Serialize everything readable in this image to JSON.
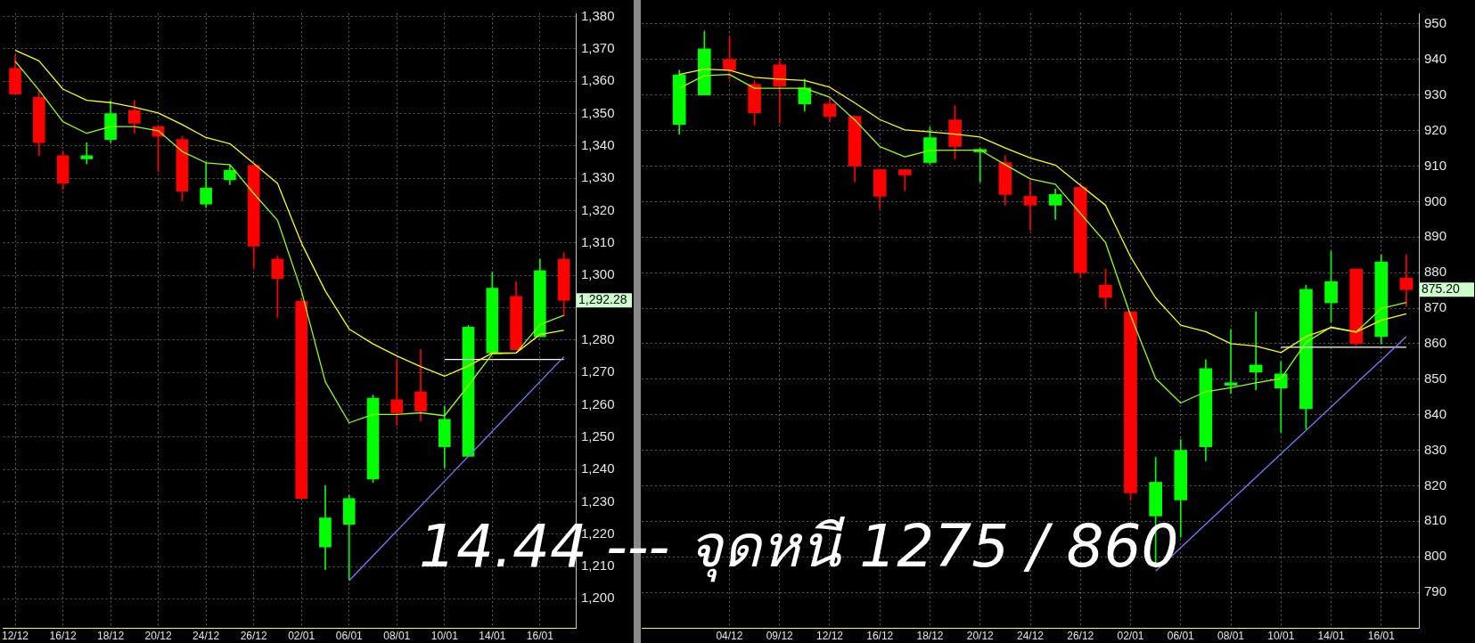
{
  "chart_data": [
    {
      "type": "candlestick",
      "categories": [
        "12/12",
        null,
        "16/12",
        null,
        "18/12",
        null,
        "20/12",
        null,
        "24/12",
        null,
        "26/12",
        null,
        "02/01",
        null,
        "06/01",
        null,
        "08/01",
        null,
        "10/01",
        null,
        "14/01",
        null,
        "16/01",
        null
      ],
      "ohlc": [
        [
          1364,
          1368,
          1356,
          1356
        ],
        [
          1355,
          1357,
          1337,
          1341
        ],
        [
          1337,
          1338.5,
          1326.5,
          1328.5
        ],
        [
          1336,
          1341,
          1334.5,
          1337
        ],
        [
          1342,
          1354,
          1341,
          1350
        ],
        [
          1351,
          1354,
          1344,
          1347
        ],
        [
          1346,
          1346,
          1332,
          1343
        ],
        [
          1342,
          1343,
          1323,
          1326
        ],
        [
          1322,
          1335,
          1321,
          1327
        ],
        [
          1329.5,
          1334,
          1328,
          1332.5
        ],
        [
          1334,
          1334,
          1302,
          1309
        ],
        [
          1305,
          1306,
          1287,
          1299
        ],
        [
          1292,
          1293,
          1231,
          1231
        ],
        [
          1216,
          1235,
          1209,
          1225
        ],
        [
          1223,
          1232,
          1206,
          1231
        ],
        [
          1237,
          1263,
          1236,
          1262
        ],
        [
          1261.5,
          1274,
          1253.5,
          1257.5
        ],
        [
          1264,
          1277,
          1255,
          1258
        ],
        [
          1247,
          1259.5,
          1240.5,
          1255.5
        ],
        [
          1244,
          1284.5,
          1244,
          1284
        ],
        [
          1276,
          1301,
          1276,
          1296
        ],
        [
          1293.5,
          1298,
          1277,
          1277
        ],
        [
          1281,
          1305,
          1281,
          1301.5
        ],
        [
          1305,
          1307,
          1287.5,
          1292.28
        ]
      ],
      "colors": [
        "#ff0000",
        "#ff0000",
        "#ff0000",
        "#00ff00",
        "#00ff00",
        "#ff0000",
        "#ff0000",
        "#ff0000",
        "#00ff00",
        "#00ff00",
        "#ff0000",
        "#ff0000",
        "#ff0000",
        "#00ff00",
        "#00ff00",
        "#00ff00",
        "#ff0000",
        "#ff0000",
        "#00ff00",
        "#00ff00",
        "#00ff00",
        "#ff0000",
        "#00ff00",
        "#ff0000"
      ],
      "series": [
        {
          "type": "line",
          "color": "#ffff00",
          "values": [
            1369.6,
            1366.3,
            1357.6,
            1354.1,
            1353.4,
            1352,
            1350.2,
            1346.6,
            1342.6,
            1340.7,
            1334.6,
            1328.4,
            1310,
            1295.2,
            1283.4,
            1278.8,
            1275.1,
            1271.8,
            1268.8,
            1272,
            1276,
            1276,
            1281.7,
            1283
          ]
        },
        {
          "type": "line",
          "color": "#99ff00",
          "values": [
            1366.2,
            1357.3,
            1347.5,
            1343.9,
            1346,
            1346,
            1344.7,
            1338.3,
            1334.8,
            1334.2,
            1325.3,
            1317,
            1295.2,
            1267.1,
            1254.4,
            1257,
            1257,
            1257.5,
            1256.6,
            1265.9,
            1275.7,
            1276,
            1284.8,
            1287.6
          ]
        },
        {
          "type": "line",
          "color": "#7b7bff",
          "values": [
            null,
            null,
            null,
            null,
            null,
            null,
            null,
            null,
            null,
            null,
            null,
            null,
            null,
            null,
            1205.6,
            null,
            null,
            null,
            null,
            null,
            null,
            null,
            null,
            1274.8
          ]
        },
        {
          "type": "line",
          "color": "#ffffff",
          "values": [
            null,
            null,
            null,
            null,
            null,
            null,
            null,
            null,
            null,
            null,
            null,
            null,
            null,
            null,
            null,
            null,
            null,
            null,
            1274,
            1274,
            1274,
            1274,
            1274,
            1274
          ]
        }
      ],
      "ylim": [
        1191,
        1381
      ],
      "yticks": [
        {
          "value": 1200,
          "label": "1,200"
        },
        {
          "value": 1210,
          "label": "1,210"
        },
        {
          "value": 1220,
          "label": "1,220"
        },
        {
          "value": 1230,
          "label": "1,230"
        },
        {
          "value": 1240,
          "label": "1,240"
        },
        {
          "value": 1250,
          "label": "1,250"
        },
        {
          "value": 1260,
          "label": "1,260"
        },
        {
          "value": 1270,
          "label": "1,270"
        },
        {
          "value": 1280,
          "label": "1,280"
        },
        {
          "value": 1290,
          "label": null
        },
        {
          "value": 1300,
          "label": "1,300"
        },
        {
          "value": 1310,
          "label": "1,310"
        },
        {
          "value": 1320,
          "label": "1,320"
        },
        {
          "value": 1330,
          "label": "1,330"
        },
        {
          "value": 1340,
          "label": "1,340"
        },
        {
          "value": 1350,
          "label": "1,350"
        },
        {
          "value": 1360,
          "label": "1,360"
        },
        {
          "value": 1370,
          "label": "1,370"
        },
        {
          "value": 1380,
          "label": "1,380"
        }
      ],
      "grid": true,
      "marker": "none",
      "annotations": [
        "1,292.28",
        "14.44 --- จุดหนี 1275 / 860"
      ]
    },
    {
      "type": "candlestick",
      "categories": [
        null,
        null,
        null,
        "04/12",
        null,
        "09/12",
        null,
        "12/12",
        null,
        "16/12",
        null,
        "18/12",
        null,
        "20/12",
        null,
        "24/12",
        null,
        "26/12",
        null,
        "02/01",
        null,
        "06/01",
        null,
        "08/01",
        null,
        "10/01",
        null,
        "14/01",
        null,
        "16/01",
        null
      ],
      "ohlc": [
        null,
        [
          921.7,
          937,
          919,
          935.7
        ],
        [
          930,
          948,
          930,
          943
        ],
        [
          940,
          946.5,
          934.5,
          937
        ],
        [
          933,
          934,
          921.5,
          925
        ],
        [
          938.5,
          940,
          922,
          932.5
        ],
        [
          927.5,
          934.5,
          925.5,
          932
        ],
        [
          927.5,
          929,
          922.5,
          924
        ],
        [
          924,
          924,
          905.5,
          910
        ],
        [
          909,
          909,
          898,
          901.5
        ],
        [
          909,
          909,
          903,
          907.5
        ],
        [
          911,
          921,
          910.5,
          918
        ],
        [
          923,
          927,
          912,
          915.5
        ],
        [
          914,
          915,
          905.5,
          914.7
        ],
        [
          911,
          913,
          899,
          902
        ],
        [
          901.5,
          906,
          892,
          899
        ],
        [
          899,
          903.5,
          895,
          902
        ],
        [
          904,
          905,
          878.5,
          880
        ],
        [
          876.5,
          881,
          870,
          873
        ],
        [
          869,
          869,
          816,
          818
        ],
        [
          811.5,
          828,
          797,
          821
        ],
        [
          816,
          833,
          805.5,
          830
        ],
        [
          831,
          855.5,
          827,
          853
        ],
        [
          848.3,
          864,
          846,
          849
        ],
        [
          852,
          869,
          847,
          854
        ],
        [
          847.5,
          855,
          835,
          851.5
        ],
        [
          841.7,
          876.5,
          836,
          875.3
        ],
        [
          871.5,
          886,
          866,
          877.5
        ],
        [
          881,
          881,
          859.5,
          860
        ],
        [
          862,
          885,
          860,
          883
        ],
        [
          878.5,
          885,
          870.5,
          875.2
        ]
      ],
      "colors": [
        null,
        "#00ff00",
        "#00ff00",
        "#ff0000",
        "#ff0000",
        "#ff0000",
        "#00ff00",
        "#ff0000",
        "#ff0000",
        "#ff0000",
        "#ff0000",
        "#00ff00",
        "#ff0000",
        "#00ff00",
        "#ff0000",
        "#ff0000",
        "#00ff00",
        "#ff0000",
        "#ff0000",
        "#ff0000",
        "#00ff00",
        "#00ff00",
        "#00ff00",
        "#00ff00",
        "#00ff00",
        "#00ff00",
        "#00ff00",
        "#00ff00",
        "#ff0000",
        "#00ff00",
        "#ff0000"
      ],
      "series": [
        {
          "type": "line",
          "color": "#ffff00",
          "values": [
            null,
            935.8,
            937.3,
            937,
            935,
            934.5,
            934.1,
            932.2,
            927.8,
            923.1,
            920.2,
            919.6,
            919,
            918.2,
            915.1,
            912.3,
            910.3,
            904.6,
            899,
            884.5,
            872.9,
            865.2,
            863.4,
            860,
            859.3,
            857.5,
            862,
            864.5,
            863.3,
            866.6,
            868.4
          ]
        },
        {
          "type": "line",
          "color": "#99ff00",
          "values": [
            null,
            931.9,
            935.5,
            935.8,
            931.9,
            931.9,
            931.9,
            929.4,
            923,
            915.5,
            912.6,
            914.4,
            914.5,
            914.5,
            910.4,
            906.4,
            904.9,
            896.7,
            888.5,
            868,
            850.2,
            843.3,
            846.5,
            847.6,
            849,
            850.2,
            860.4,
            864.7,
            863.3,
            869.9,
            871.6
          ]
        },
        {
          "type": "line",
          "color": "#7b7bff",
          "values": [
            null,
            null,
            null,
            null,
            null,
            null,
            null,
            null,
            null,
            null,
            null,
            null,
            null,
            null,
            null,
            null,
            null,
            null,
            null,
            null,
            796,
            null,
            null,
            null,
            null,
            null,
            null,
            null,
            null,
            null,
            862
          ]
        },
        {
          "type": "line",
          "color": "#ffffff",
          "values": [
            null,
            null,
            null,
            null,
            null,
            null,
            null,
            null,
            null,
            null,
            null,
            null,
            null,
            null,
            null,
            null,
            null,
            null,
            null,
            null,
            null,
            null,
            null,
            null,
            null,
            859,
            859,
            859,
            859,
            859,
            859
          ]
        }
      ],
      "ylim": [
        780,
        953
      ],
      "yticks": [
        790,
        800,
        810,
        820,
        830,
        840,
        850,
        860,
        870,
        880,
        890,
        900,
        910,
        920,
        930,
        940,
        950
      ],
      "grid": true,
      "marker": "none",
      "annotations": [
        "875.20"
      ]
    }
  ]
}
